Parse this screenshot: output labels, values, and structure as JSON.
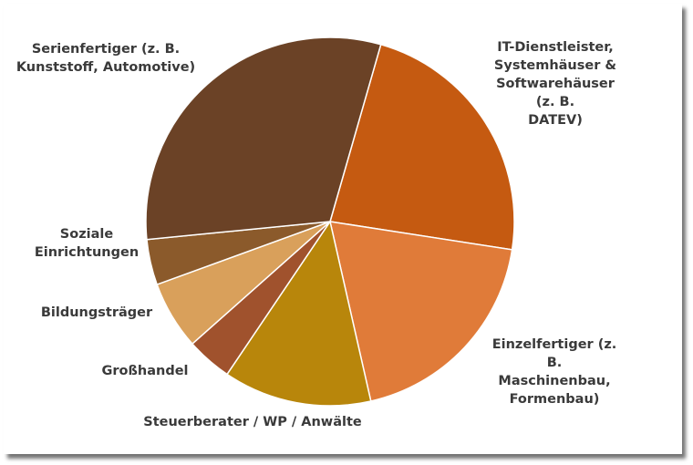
{
  "chart_data": {
    "type": "pie",
    "title": "",
    "legend": "none",
    "slices": [
      {
        "label": "IT-Dienstleister,\nSystemhäuser &\nSoftwarehäuser (z. B.\nDATEV)",
        "value": 23,
        "color": "#C55A11"
      },
      {
        "label": "Einzelfertiger (z. B.\nMaschinenbau,\nFormenbau)",
        "value": 19,
        "color": "#E07B39"
      },
      {
        "label": "Steuerberater / WP / Anwälte",
        "value": 13,
        "color": "#B8860B"
      },
      {
        "label": "Großhandel",
        "value": 4,
        "color": "#A0522D"
      },
      {
        "label": "Bildungsträger",
        "value": 6,
        "color": "#D9A05B"
      },
      {
        "label": "Soziale\nEinrichtungen",
        "value": 4,
        "color": "#8B5A2B"
      },
      {
        "label": "Serienfertiger (z. B.\nKunststoff, Automotive)",
        "value": 31,
        "color": "#6B4226"
      }
    ]
  }
}
